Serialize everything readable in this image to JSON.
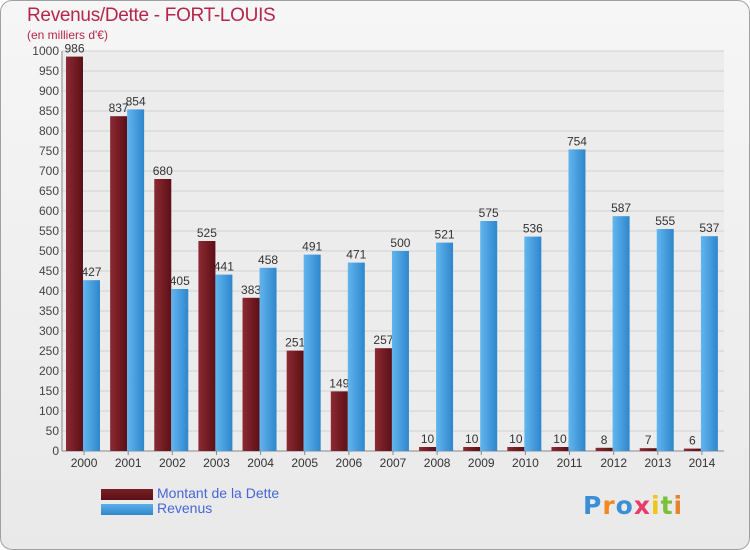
{
  "chart_data": {
    "type": "bar",
    "title": "Revenus/Dette - FORT-LOUIS",
    "subtitle": "(en milliers d'€)",
    "categories": [
      "2000",
      "2001",
      "2002",
      "2003",
      "2004",
      "2005",
      "2006",
      "2007",
      "2008",
      "2009",
      "2010",
      "2011",
      "2012",
      "2013",
      "2014"
    ],
    "series": [
      {
        "name": "Montant de la Dette",
        "color": "#7a1f26",
        "values": [
          986,
          837,
          680,
          525,
          383,
          251,
          149,
          257,
          10,
          10,
          10,
          10,
          8,
          7,
          6
        ]
      },
      {
        "name": "Revenus",
        "color": "#4a9fe0",
        "values": [
          427,
          854,
          405,
          441,
          458,
          491,
          471,
          500,
          521,
          575,
          536,
          754,
          587,
          555,
          537
        ]
      }
    ],
    "ylim": [
      0,
      1000
    ],
    "yticks": [
      0,
      50,
      100,
      150,
      200,
      250,
      300,
      350,
      400,
      450,
      500,
      550,
      600,
      650,
      700,
      750,
      800,
      850,
      900,
      950,
      1000
    ],
    "grid": true,
    "legend_position": "bottom-left"
  },
  "logo": {
    "letters": [
      "P",
      "r",
      "o",
      "x",
      "i",
      "t",
      "i"
    ],
    "colors": [
      "#3b8fd6",
      "#f08a1e",
      "#3b8fd6",
      "#e83c6b",
      "#f0c419",
      "#7cbf3a",
      "#e8832a"
    ]
  }
}
